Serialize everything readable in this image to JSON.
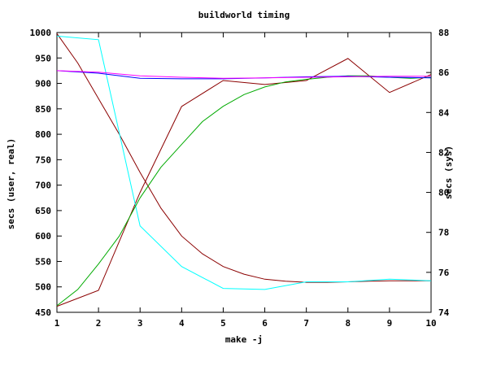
{
  "chart_data": {
    "type": "line",
    "title": "buildworld timing",
    "xlabel": "make -j",
    "ylabel": "secs (user, real)",
    "y2label": "secs (sys)",
    "xlim": [
      1,
      10
    ],
    "ylim": [
      450,
      1000
    ],
    "y2lim": [
      74,
      88
    ],
    "x_ticks": [
      1,
      2,
      3,
      4,
      5,
      6,
      7,
      8,
      9,
      10
    ],
    "y_ticks": [
      450,
      500,
      550,
      600,
      650,
      700,
      750,
      800,
      850,
      900,
      950,
      1000
    ],
    "y2_ticks": [
      74,
      76,
      78,
      80,
      82,
      84,
      86,
      88
    ],
    "grid": false,
    "series": [
      {
        "color": "#8b0000",
        "axis": "y2",
        "x": [
          1,
          2,
          3,
          4,
          5,
          6,
          7,
          8,
          9,
          10
        ],
        "values": [
          74.3,
          75.1,
          80.0,
          84.3,
          85.6,
          85.4,
          85.6,
          86.7,
          85.0,
          85.9
        ]
      },
      {
        "color": "#8b0000",
        "axis": "y",
        "x": [
          1,
          1.5,
          2,
          2.5,
          3,
          3.5,
          4,
          4.5,
          5,
          5.5,
          6,
          6.5,
          7,
          7.5,
          8,
          8.5,
          9,
          9.5,
          10
        ],
        "values": [
          998,
          940,
          870,
          800,
          725,
          655,
          600,
          565,
          540,
          525,
          515,
          511,
          509,
          509,
          510,
          511,
          512,
          512,
          512
        ]
      },
      {
        "color": "#00ffff",
        "axis": "y",
        "x": [
          1,
          2,
          3,
          4,
          5,
          6,
          7,
          8,
          9,
          10
        ],
        "values": [
          993,
          986,
          620,
          540,
          497,
          495,
          510,
          510,
          515,
          512
        ]
      },
      {
        "color": "#00aa00",
        "axis": "y",
        "x": [
          1,
          1.5,
          2,
          2.5,
          3,
          3.5,
          4,
          4.5,
          5,
          5.5,
          6,
          6.5,
          7,
          7.5,
          8,
          8.5,
          9,
          9.5,
          10
        ],
        "values": [
          463,
          495,
          545,
          600,
          675,
          735,
          780,
          825,
          855,
          878,
          893,
          903,
          908,
          912,
          915,
          915,
          912,
          910,
          912
        ]
      },
      {
        "color": "#0000ff",
        "axis": "y",
        "x": [
          1,
          2,
          3,
          4,
          5,
          6,
          7,
          8,
          9,
          10
        ],
        "values": [
          925,
          920,
          910,
          909,
          909,
          911,
          913,
          914,
          912,
          911
        ]
      },
      {
        "color": "#ff00ff",
        "axis": "y",
        "x": [
          1,
          2,
          3,
          4,
          5,
          6,
          7,
          8,
          9,
          10
        ],
        "values": [
          925,
          922,
          915,
          912,
          910,
          911,
          912,
          913,
          914,
          914
        ]
      }
    ]
  }
}
